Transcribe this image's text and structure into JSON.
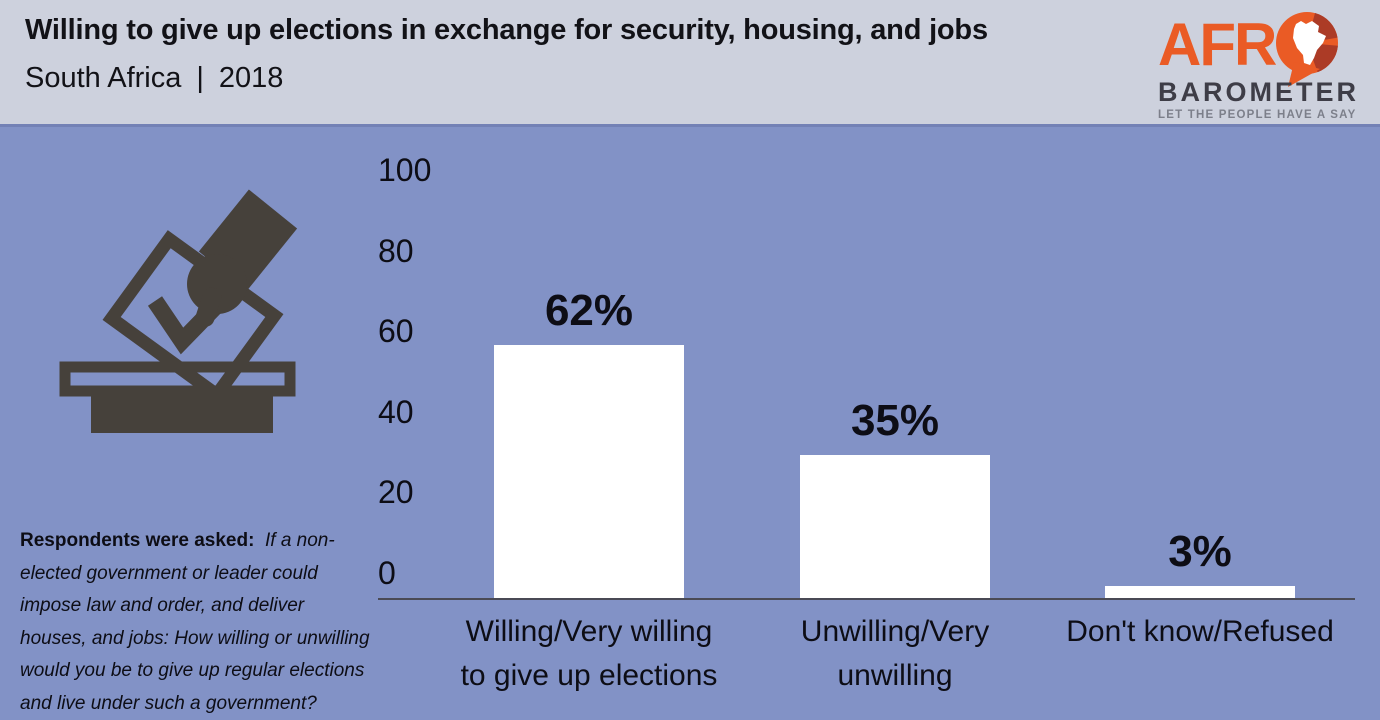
{
  "header": {
    "title": "Willing to give up elections in exchange for security, housing, and jobs",
    "country": "South Africa",
    "separator": "|",
    "year": "2018"
  },
  "logo": {
    "word_top": "AFR",
    "word_bottom": "BAROMETER",
    "tagline": "LET THE PEOPLE HAVE A SAY"
  },
  "question": {
    "lead": "Respondents were asked:",
    "body": "If a non-elected government or leader could impose law and order, and deliver houses, and jobs: How willing or unwilling would you be to give up regular elections and live under such a government?"
  },
  "chart_data": {
    "type": "bar",
    "title": "Willing to give up elections in exchange for security, housing, and jobs",
    "subtitle": "South Africa | 2018",
    "categories": [
      "Willing/Very willing to give up elections",
      "Unwilling/Very unwilling",
      "Don't know/Refused"
    ],
    "category_lines": [
      [
        "Willing/Very willing",
        "to give up elections"
      ],
      [
        "Unwilling/Very",
        "unwilling"
      ],
      [
        "Don't know/Refused"
      ]
    ],
    "values": [
      62,
      35,
      3
    ],
    "value_labels": [
      "62%",
      "35%",
      "3%"
    ],
    "yticks": [
      100,
      80,
      60,
      40,
      20,
      0
    ],
    "ylim": [
      0,
      100
    ],
    "xlabel": "",
    "ylabel": "",
    "grid": false,
    "legend": false,
    "bar_color": "#FFFFFF",
    "axis_color": "#4A4A55",
    "label_color": "#0D0D15"
  },
  "colors": {
    "header_bg": "#CDD1DD",
    "body_bg": "#8292C6",
    "divider": "#7381B5",
    "title_text": "#121217",
    "label_color": "#0D0D15",
    "icon_dark": "#46413B",
    "logo_orange": "#EA5B25",
    "logo_dark_red": "#AC3B26",
    "logo_charcoal": "#3E3D47",
    "logo_gray": "#7C7F8A"
  }
}
